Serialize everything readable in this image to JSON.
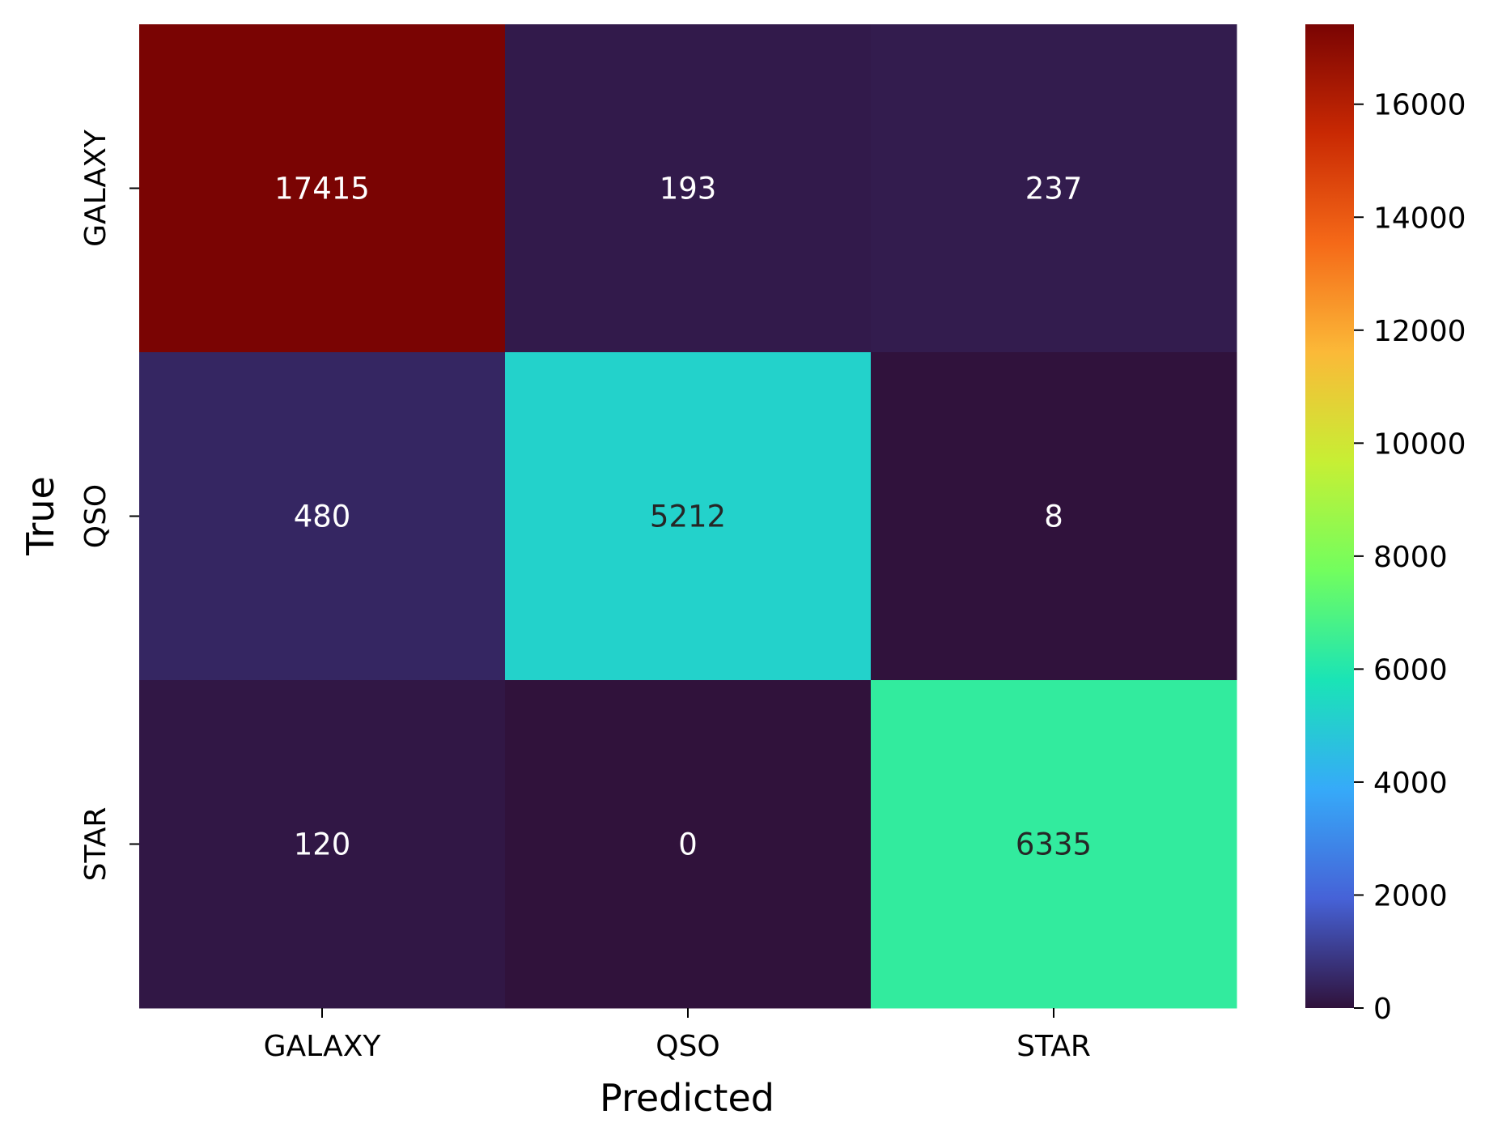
{
  "chart_data": {
    "type": "heatmap",
    "title": "",
    "xlabel": "Predicted",
    "ylabel": "True",
    "x_categories": [
      "GALAXY",
      "QSO",
      "STAR"
    ],
    "y_categories": [
      "GALAXY",
      "QSO",
      "STAR"
    ],
    "values": [
      [
        17415,
        193,
        237
      ],
      [
        480,
        5212,
        8
      ],
      [
        120,
        0,
        6335
      ]
    ],
    "colorbar": {
      "min": 0,
      "max": 17415,
      "ticks": [
        0,
        2000,
        4000,
        6000,
        8000,
        10000,
        12000,
        14000,
        16000
      ],
      "colormap": "turbo",
      "colormap_stops": [
        "#30123b",
        "#4662d7",
        "#36aaf9",
        "#1ae4b6",
        "#72fe5e",
        "#c7ef34",
        "#fbb938",
        "#f56918",
        "#c92903",
        "#7a0403"
      ]
    }
  }
}
